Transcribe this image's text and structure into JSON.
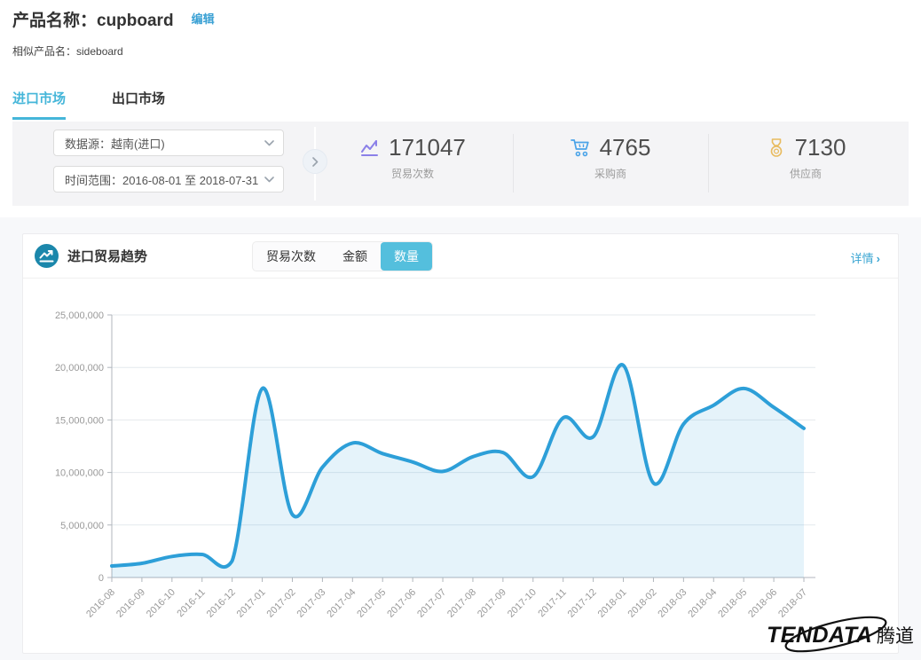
{
  "header": {
    "product_title": "产品名称：cupboard",
    "edit_label": "编辑",
    "similar_product": "相似产品名：sideboard"
  },
  "tabs": [
    {
      "label": "进口市场",
      "active": true
    },
    {
      "label": "出口市场",
      "active": false
    }
  ],
  "filters": {
    "data_source": "数据源：越南(进口)",
    "date_range": "时间范围：2016-08-01 至 2018-07-31"
  },
  "stats": [
    {
      "icon": "line-chart-icon",
      "value": "171047",
      "label": "贸易次数",
      "color": "#8b80e8"
    },
    {
      "icon": "cart-icon",
      "value": "4765",
      "label": "采购商",
      "color": "#4aa3e8"
    },
    {
      "icon": "medal-icon",
      "value": "7130",
      "label": "供应商",
      "color": "#e8bb5f"
    }
  ],
  "card": {
    "title": "进口贸易趋势",
    "toggles": [
      {
        "label": "贸易次数",
        "active": false
      },
      {
        "label": "金额",
        "active": false
      },
      {
        "label": "数量",
        "active": true
      }
    ],
    "detail_label": "详情",
    "detail_arrow": "›"
  },
  "chart_data": {
    "type": "area",
    "title": "进口贸易趋势 - 数量",
    "x": [
      "2016-08",
      "2016-09",
      "2016-10",
      "2016-11",
      "2016-12",
      "2017-01",
      "2017-02",
      "2017-03",
      "2017-04",
      "2017-05",
      "2017-06",
      "2017-07",
      "2017-08",
      "2017-09",
      "2017-10",
      "2017-11",
      "2017-12",
      "2018-01",
      "2018-02",
      "2018-03",
      "2018-04",
      "2018-05",
      "2018-06",
      "2018-07"
    ],
    "series": [
      {
        "name": "数量",
        "values": [
          1100000,
          1350000,
          2000000,
          2200000,
          1600000,
          18000000,
          6000000,
          10500000,
          12800000,
          11800000,
          11000000,
          10100000,
          11500000,
          11900000,
          9600000,
          15200000,
          13400000,
          20200000,
          9000000,
          14600000,
          16400000,
          18000000,
          16200000,
          14200000
        ]
      }
    ],
    "ylim": [
      0,
      25000000
    ],
    "y_ticks": [
      0,
      5000000,
      10000000,
      15000000,
      20000000,
      25000000
    ],
    "y_tick_labels": [
      "0",
      "5,000,000",
      "10,000,000",
      "15,000,000",
      "20,000,000",
      "25,000,000"
    ],
    "grid": true,
    "legend": "none",
    "smooth": true,
    "line_color": "#2d9fd8",
    "fill_color": "rgba(45,159,216,0.12)",
    "axis_color": "#b0b6bc",
    "grid_color": "#e4e9ed"
  },
  "logo": {
    "brand": "TENDATA",
    "brand_cn": "腾道"
  },
  "colors": {
    "accent_tab": "#45b6d9",
    "link_blue": "#3ba1d4",
    "toggle_active": "#54bfdd",
    "card_icon_bg": "#1b87ab",
    "filter_bg": "#f4f4f6"
  }
}
